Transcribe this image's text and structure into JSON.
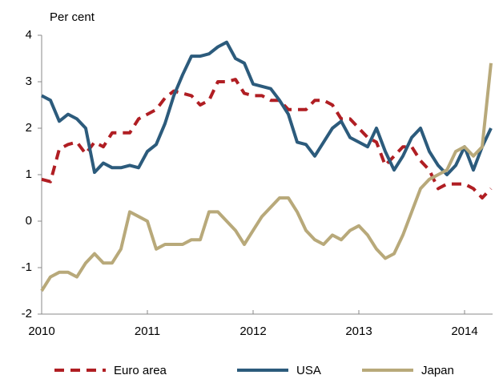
{
  "chart_data": {
    "type": "line",
    "y_label": "Per cent",
    "categories": [
      "2010",
      null,
      null,
      null,
      null,
      null,
      null,
      null,
      null,
      null,
      null,
      null,
      "2011",
      null,
      null,
      null,
      null,
      null,
      null,
      null,
      null,
      null,
      null,
      null,
      "2012",
      null,
      null,
      null,
      null,
      null,
      null,
      null,
      null,
      null,
      null,
      null,
      "2013",
      null,
      null,
      null,
      null,
      null,
      null,
      null,
      null,
      null,
      null,
      null,
      "2014",
      null,
      null,
      null
    ],
    "series": [
      {
        "name": "Euro area",
        "color": "#b01e23",
        "dash": true,
        "values": [
          0.9,
          0.85,
          1.55,
          1.65,
          1.7,
          1.45,
          1.7,
          1.6,
          1.9,
          1.9,
          1.9,
          2.2,
          2.3,
          2.4,
          2.65,
          2.8,
          2.75,
          2.7,
          2.5,
          2.6,
          3.0,
          3.0,
          3.05,
          2.75,
          2.7,
          2.7,
          2.6,
          2.6,
          2.4,
          2.4,
          2.4,
          2.6,
          2.6,
          2.5,
          2.2,
          2.2,
          2.0,
          1.8,
          1.7,
          1.2,
          1.4,
          1.6,
          1.6,
          1.3,
          1.1,
          0.7,
          0.8,
          0.8,
          0.8,
          0.7,
          0.5,
          0.7
        ]
      },
      {
        "name": "USA",
        "color": "#2c5b7c",
        "dash": false,
        "values": [
          2.7,
          2.6,
          2.15,
          2.3,
          2.2,
          2.0,
          1.05,
          1.25,
          1.15,
          1.15,
          1.2,
          1.15,
          1.5,
          1.65,
          2.1,
          2.7,
          3.15,
          3.55,
          3.55,
          3.6,
          3.75,
          3.85,
          3.5,
          3.4,
          2.95,
          2.9,
          2.85,
          2.6,
          2.3,
          1.7,
          1.65,
          1.4,
          1.7,
          2.0,
          2.15,
          1.8,
          1.7,
          1.6,
          2.0,
          1.5,
          1.1,
          1.4,
          1.8,
          2.0,
          1.5,
          1.2,
          1.0,
          1.2,
          1.6,
          1.1,
          1.6,
          2.0
        ]
      },
      {
        "name": "Japan",
        "color": "#b8a97a",
        "dash": false,
        "values": [
          -1.5,
          -1.2,
          -1.1,
          -1.1,
          -1.2,
          -0.9,
          -0.7,
          -0.9,
          -0.9,
          -0.6,
          0.2,
          0.1,
          0.0,
          -0.6,
          -0.5,
          -0.5,
          -0.5,
          -0.4,
          -0.4,
          0.2,
          0.2,
          0.0,
          -0.2,
          -0.5,
          -0.2,
          0.1,
          0.3,
          0.5,
          0.5,
          0.2,
          -0.2,
          -0.4,
          -0.5,
          -0.3,
          -0.4,
          -0.2,
          -0.1,
          -0.3,
          -0.6,
          -0.8,
          -0.7,
          -0.3,
          0.2,
          0.7,
          0.9,
          1.0,
          1.1,
          1.5,
          1.6,
          1.4,
          1.6,
          3.4
        ]
      }
    ],
    "ylim": [
      -2,
      4
    ],
    "yticks": [
      -2,
      -1,
      0,
      1,
      2,
      3,
      4
    ],
    "grid": false
  }
}
